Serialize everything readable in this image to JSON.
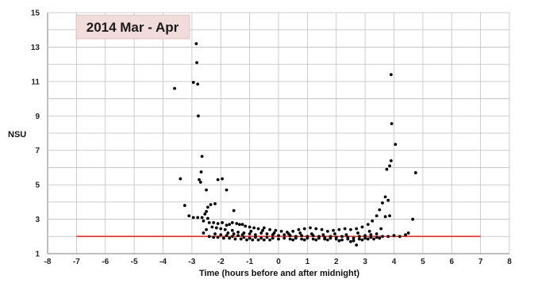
{
  "chart_data": {
    "type": "scatter",
    "title": "2014 Mar - Apr",
    "xlabel": "Time (hours before and after midnight)",
    "ylabel": "NSU",
    "xlim": [
      -8,
      8
    ],
    "ylim": [
      1,
      15
    ],
    "xticks": [
      "-8",
      "-7",
      "-6",
      "-5",
      "-4",
      "-3",
      "-2",
      "-1",
      "0",
      "1",
      "2",
      "3",
      "4",
      "5",
      "6",
      "7",
      "8"
    ],
    "yticks": [
      "1",
      "3",
      "5",
      "7",
      "9",
      "11",
      "13",
      "15"
    ],
    "grid": true,
    "reference_line": {
      "x": [
        -7,
        7
      ],
      "y": 2.0,
      "color": "#e03c31"
    },
    "point_color": "#000000",
    "series": [
      {
        "points": [
          [
            -3.6,
            10.6
          ],
          [
            -3.4,
            5.35
          ],
          [
            -3.25,
            3.8
          ],
          [
            -3.1,
            3.2
          ],
          [
            -2.95,
            10.95
          ],
          [
            -2.85,
            13.2
          ],
          [
            -2.83,
            12.1
          ],
          [
            -2.8,
            10.85
          ],
          [
            -2.78,
            9.0
          ],
          [
            -2.75,
            5.3
          ],
          [
            -2.65,
            6.65
          ],
          [
            -2.68,
            5.75
          ],
          [
            -2.7,
            5.15
          ],
          [
            -2.5,
            4.7
          ],
          [
            -2.45,
            3.7
          ],
          [
            -2.35,
            3.85
          ],
          [
            -2.2,
            3.9
          ],
          [
            -2.1,
            5.3
          ],
          [
            -1.95,
            5.35
          ],
          [
            -1.8,
            4.7
          ],
          [
            -1.55,
            3.5
          ],
          [
            -1.35,
            2.7
          ],
          [
            -2.95,
            3.1
          ],
          [
            -2.8,
            3.1
          ],
          [
            -2.65,
            3.1
          ],
          [
            -2.55,
            3.3
          ],
          [
            -2.5,
            3.45
          ],
          [
            -2.45,
            3.05
          ],
          [
            -2.6,
            2.9
          ],
          [
            -2.4,
            2.8
          ],
          [
            -2.25,
            2.8
          ],
          [
            -2.1,
            2.75
          ],
          [
            -1.95,
            2.8
          ],
          [
            -1.8,
            2.65
          ],
          [
            -1.7,
            2.7
          ],
          [
            -1.6,
            2.8
          ],
          [
            -1.45,
            2.75
          ],
          [
            -1.25,
            2.7
          ],
          [
            -1.15,
            2.6
          ],
          [
            -1.0,
            2.55
          ],
          [
            -0.85,
            2.5
          ],
          [
            -0.7,
            2.45
          ],
          [
            -0.5,
            2.5
          ],
          [
            -0.3,
            2.4
          ],
          [
            -0.1,
            2.35
          ],
          [
            0.1,
            2.3
          ],
          [
            0.3,
            2.25
          ],
          [
            0.5,
            2.3
          ],
          [
            0.7,
            2.4
          ],
          [
            0.9,
            2.45
          ],
          [
            1.1,
            2.5
          ],
          [
            1.3,
            2.45
          ],
          [
            1.5,
            2.4
          ],
          [
            1.7,
            2.3
          ],
          [
            1.9,
            2.35
          ],
          [
            2.1,
            2.4
          ],
          [
            2.3,
            2.45
          ],
          [
            2.5,
            2.4
          ],
          [
            2.7,
            2.45
          ],
          [
            2.9,
            2.55
          ],
          [
            3.1,
            2.7
          ],
          [
            3.25,
            2.9
          ],
          [
            3.4,
            3.2
          ],
          [
            3.5,
            3.55
          ],
          [
            3.6,
            3.95
          ],
          [
            3.7,
            4.3
          ],
          [
            3.75,
            5.9
          ],
          [
            3.8,
            4.1
          ],
          [
            3.85,
            6.1
          ],
          [
            3.9,
            6.4
          ],
          [
            3.92,
            8.55
          ],
          [
            3.9,
            11.4
          ],
          [
            4.05,
            7.35
          ],
          [
            4.65,
            3.0
          ],
          [
            4.75,
            5.7
          ],
          [
            3.7,
            3.15
          ],
          [
            3.85,
            3.2
          ],
          [
            -2.3,
            2.55
          ],
          [
            -2.15,
            2.5
          ],
          [
            -2.0,
            2.45
          ],
          [
            -1.85,
            2.4
          ],
          [
            -1.6,
            2.35
          ],
          [
            -1.4,
            2.25
          ],
          [
            -1.2,
            2.2
          ],
          [
            -1.0,
            2.15
          ],
          [
            -0.8,
            2.1
          ],
          [
            -0.6,
            2.2
          ],
          [
            -0.4,
            2.15
          ],
          [
            -0.2,
            2.1
          ],
          [
            0.0,
            2.05
          ],
          [
            0.2,
            2.1
          ],
          [
            0.4,
            2.05
          ],
          [
            0.6,
            2.0
          ],
          [
            0.8,
            2.05
          ],
          [
            1.0,
            2.0
          ],
          [
            1.2,
            2.05
          ],
          [
            1.4,
            2.0
          ],
          [
            1.6,
            1.95
          ],
          [
            1.8,
            2.0
          ],
          [
            2.0,
            1.95
          ],
          [
            2.2,
            2.0
          ],
          [
            2.4,
            1.95
          ],
          [
            2.6,
            1.9
          ],
          [
            2.8,
            2.0
          ],
          [
            3.0,
            2.05
          ],
          [
            3.2,
            2.1
          ],
          [
            3.4,
            2.15
          ],
          [
            -2.2,
            2.15
          ],
          [
            -2.0,
            2.1
          ],
          [
            -1.8,
            2.05
          ],
          [
            -1.6,
            2.0
          ],
          [
            -1.4,
            2.05
          ],
          [
            -1.2,
            1.95
          ],
          [
            -1.0,
            1.9
          ],
          [
            -0.8,
            1.95
          ],
          [
            -0.6,
            1.9
          ],
          [
            -0.4,
            1.95
          ],
          [
            -0.2,
            1.9
          ],
          [
            0.0,
            1.85
          ],
          [
            0.2,
            1.9
          ],
          [
            0.4,
            1.85
          ],
          [
            0.6,
            1.9
          ],
          [
            0.8,
            1.85
          ],
          [
            1.0,
            1.9
          ],
          [
            1.2,
            1.85
          ],
          [
            1.4,
            1.9
          ],
          [
            1.6,
            1.85
          ],
          [
            1.8,
            1.9
          ],
          [
            2.0,
            1.85
          ],
          [
            2.2,
            1.8
          ],
          [
            2.4,
            1.85
          ],
          [
            2.6,
            1.75
          ],
          [
            2.8,
            1.85
          ],
          [
            3.0,
            1.9
          ],
          [
            3.2,
            1.95
          ],
          [
            3.4,
            1.95
          ],
          [
            3.6,
            2.0
          ],
          [
            3.8,
            2.0
          ],
          [
            4.0,
            2.05
          ],
          [
            4.2,
            2.0
          ],
          [
            4.4,
            2.1
          ],
          [
            4.5,
            2.2
          ],
          [
            -2.4,
            2.0
          ],
          [
            -2.25,
            1.95
          ],
          [
            -2.1,
            1.95
          ],
          [
            -1.9,
            1.9
          ],
          [
            -1.7,
            1.9
          ],
          [
            -1.5,
            1.85
          ],
          [
            -1.3,
            1.85
          ],
          [
            -1.1,
            1.8
          ],
          [
            -0.9,
            1.8
          ],
          [
            -0.7,
            1.8
          ],
          [
            -0.5,
            1.8
          ],
          [
            -0.3,
            1.8
          ],
          [
            0.5,
            1.8
          ],
          [
            0.9,
            1.8
          ],
          [
            1.3,
            1.8
          ],
          [
            1.7,
            1.8
          ],
          [
            2.1,
            1.75
          ],
          [
            2.5,
            1.7
          ],
          [
            2.7,
            1.5
          ],
          [
            2.9,
            1.8
          ],
          [
            3.1,
            1.85
          ],
          [
            3.3,
            1.85
          ],
          [
            3.5,
            1.9
          ],
          [
            -2.6,
            2.2
          ],
          [
            -2.5,
            2.4
          ],
          [
            -1.75,
            2.2
          ],
          [
            -1.55,
            2.15
          ],
          [
            -1.25,
            2.1
          ],
          [
            -0.95,
            2.3
          ],
          [
            -0.55,
            2.35
          ],
          [
            -0.15,
            2.2
          ],
          [
            0.35,
            2.15
          ],
          [
            0.75,
            2.2
          ],
          [
            1.15,
            2.15
          ],
          [
            1.55,
            2.1
          ],
          [
            1.95,
            2.15
          ],
          [
            2.35,
            2.1
          ],
          [
            2.75,
            2.2
          ],
          [
            3.15,
            2.3
          ],
          [
            3.55,
            2.45
          ]
        ]
      }
    ]
  }
}
